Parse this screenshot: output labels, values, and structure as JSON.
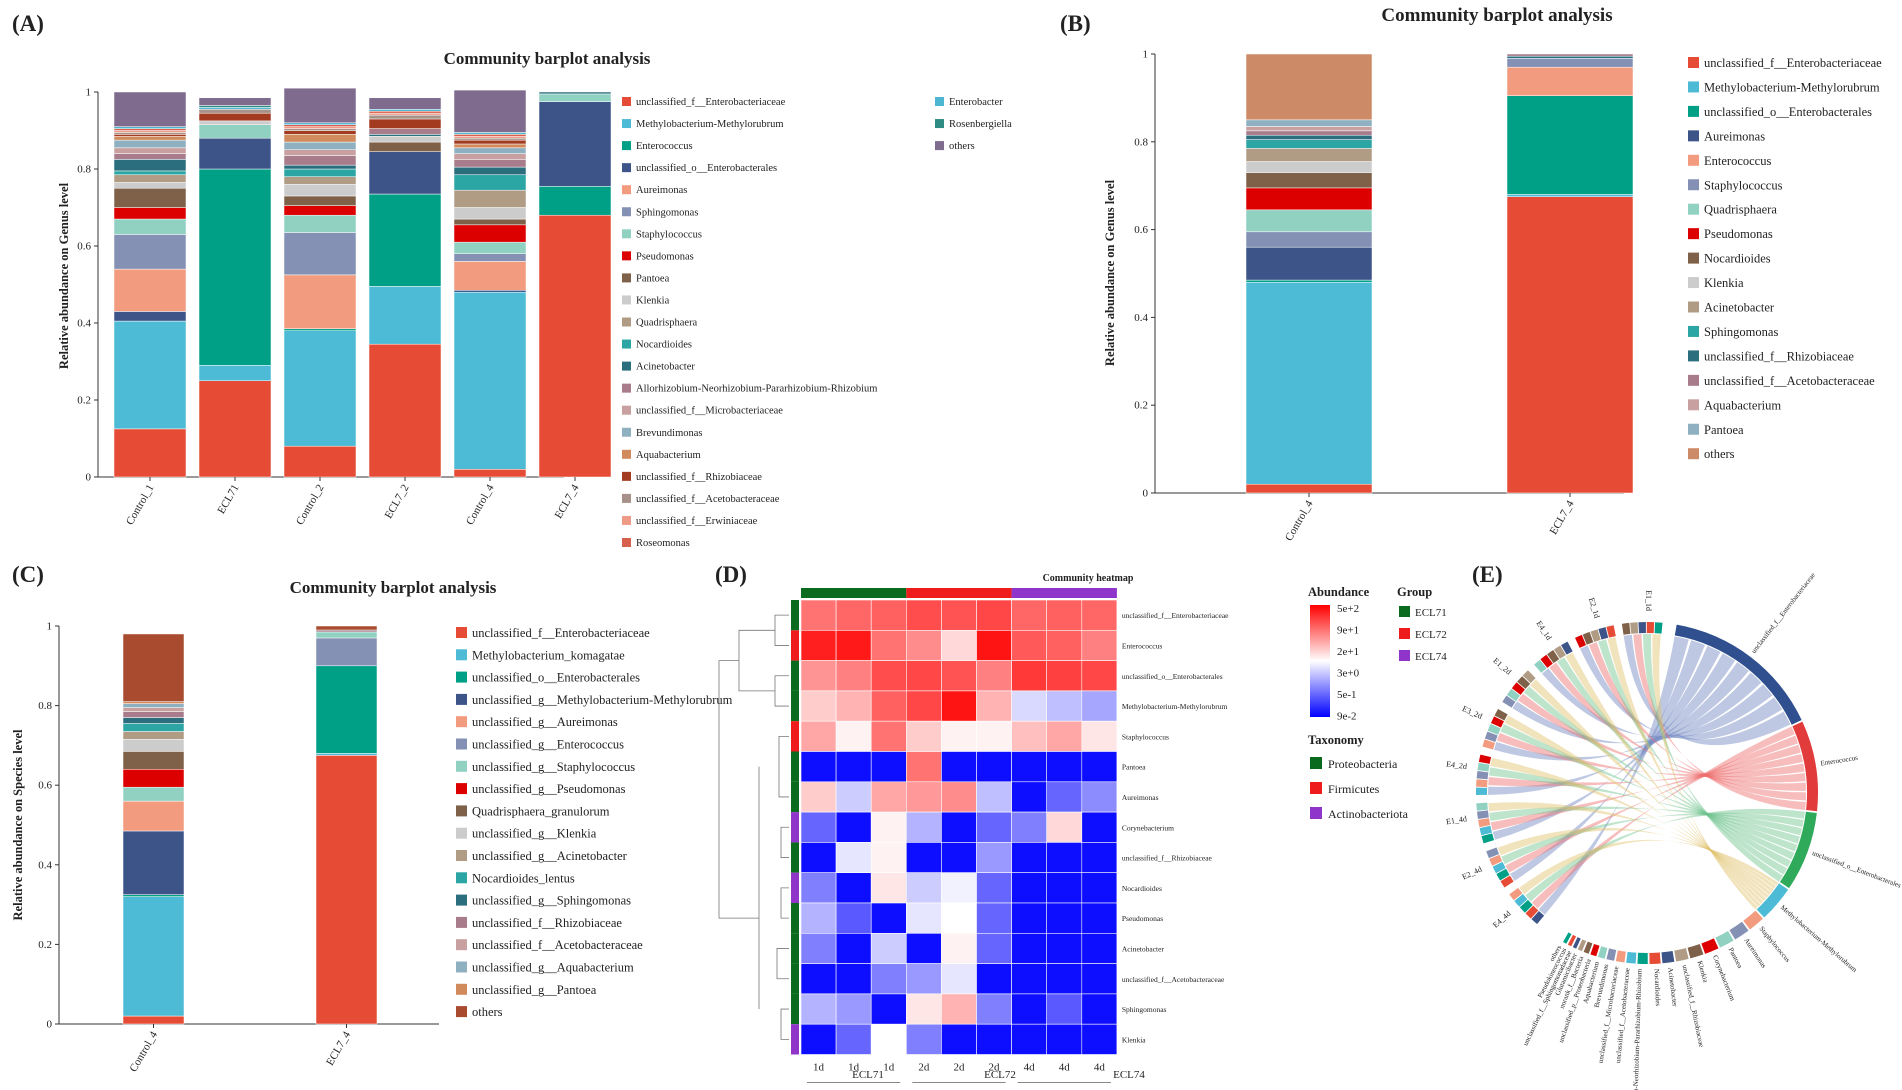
{
  "chart_data": [
    {
      "id": "A",
      "panel_label": "(A)",
      "type": "bar",
      "stacked": true,
      "title": "Community barplot analysis",
      "ylabel": "Relative abundance on Genus level",
      "ylim": [
        0,
        1
      ],
      "yticks": [
        "0",
        "0.2",
        "0.4",
        "0.6",
        "0.8",
        "1"
      ],
      "categories": [
        "Control_1",
        "ECL71",
        "Control_2",
        "ECL7_2",
        "Control_4",
        "ECL7_4"
      ],
      "series": [
        {
          "name": "unclassified_f__Enterobacteriaceae",
          "color": "#e64b35",
          "values": [
            0.125,
            0.25,
            0.08,
            0.345,
            0.02,
            0.68
          ]
        },
        {
          "name": "Methylobacterium-Methylorubrum",
          "color": "#4dbbd5",
          "values": [
            0.28,
            0.04,
            0.3,
            0.15,
            0.46,
            0.0
          ]
        },
        {
          "name": "Enterococcus",
          "color": "#00a087",
          "values": [
            0.0,
            0.51,
            0.005,
            0.24,
            0.0,
            0.075
          ]
        },
        {
          "name": "unclassified_o__Enterobacterales",
          "color": "#3c5488",
          "values": [
            0.025,
            0.08,
            0.0,
            0.11,
            0.005,
            0.22
          ]
        },
        {
          "name": "Aureimonas",
          "color": "#f39b7f",
          "values": [
            0.11,
            0.0,
            0.14,
            0.0,
            0.075,
            0.0
          ]
        },
        {
          "name": "Sphingomonas",
          "color": "#8491b4",
          "values": [
            0.09,
            0.0,
            0.11,
            0.0,
            0.02,
            0.0
          ]
        },
        {
          "name": "Staphylococcus",
          "color": "#91d1c2",
          "values": [
            0.04,
            0.035,
            0.045,
            0.0,
            0.03,
            0.02
          ]
        },
        {
          "name": "Pseudomonas",
          "color": "#dc0000",
          "values": [
            0.03,
            0.0,
            0.025,
            0.0,
            0.045,
            0.0
          ]
        },
        {
          "name": "Pantoea",
          "color": "#7e6148",
          "values": [
            0.05,
            0.0,
            0.025,
            0.025,
            0.015,
            0.0
          ]
        },
        {
          "name": "Klenkia",
          "color": "#cccccc",
          "values": [
            0.015,
            0.01,
            0.03,
            0.015,
            0.03,
            0.0
          ]
        },
        {
          "name": "Quadrisphaera",
          "color": "#b09c85",
          "values": [
            0.02,
            0.0,
            0.02,
            0.0,
            0.045,
            0.0
          ]
        },
        {
          "name": "Nocardioides",
          "color": "#2ca6a4",
          "values": [
            0.01,
            0.0,
            0.02,
            0.0,
            0.04,
            0.0
          ]
        },
        {
          "name": "Acinetobacter",
          "color": "#2b6f7f",
          "values": [
            0.03,
            0.0,
            0.01,
            0.005,
            0.02,
            0.005
          ]
        },
        {
          "name": "Allorhizobium-Neorhizobium-Pararhizobium-Rhizobium",
          "color": "#a97c8c",
          "values": [
            0.015,
            0.0,
            0.025,
            0.015,
            0.02,
            0.0
          ]
        },
        {
          "name": "unclassified_f__Microbacteriaceae",
          "color": "#c9a0a0",
          "values": [
            0.015,
            0.0,
            0.015,
            0.0,
            0.015,
            0.0
          ]
        },
        {
          "name": "Brevundimonas",
          "color": "#8fb0c0",
          "values": [
            0.02,
            0.0,
            0.02,
            0.0,
            0.015,
            0.0
          ]
        },
        {
          "name": "Aquabacterium",
          "color": "#d08a5c",
          "values": [
            0.01,
            0.0,
            0.02,
            0.0,
            0.01,
            0.0
          ]
        },
        {
          "name": "unclassified_f__Rhizobiaceae",
          "color": "#a33b20",
          "values": [
            0.005,
            0.02,
            0.01,
            0.025,
            0.01,
            0.0
          ]
        },
        {
          "name": "unclassified_f__Acetobacteraceae",
          "color": "#a69288",
          "values": [
            0.005,
            0.01,
            0.005,
            0.01,
            0.005,
            0.0
          ]
        },
        {
          "name": "unclassified_f__Erwiniaceae",
          "color": "#ee9a86",
          "values": [
            0.005,
            0.0,
            0.005,
            0.005,
            0.005,
            0.0
          ]
        },
        {
          "name": "Roseomonas",
          "color": "#d7604c",
          "values": [
            0.005,
            0.0,
            0.005,
            0.005,
            0.005,
            0.0
          ]
        },
        {
          "name": "Enterobacter",
          "color": "#4db6d0",
          "values": [
            0.005,
            0.005,
            0.005,
            0.005,
            0.005,
            0.0
          ]
        },
        {
          "name": "Rosenbergiella",
          "color": "#2e8b83",
          "values": [
            0.0,
            0.005,
            0.0,
            0.0,
            0.0,
            0.0
          ]
        },
        {
          "name": "others",
          "color": "#7f6b8e",
          "values": [
            0.09,
            0.02,
            0.09,
            0.03,
            0.11,
            0.0
          ]
        }
      ]
    },
    {
      "id": "B",
      "panel_label": "(B)",
      "type": "bar",
      "stacked": true,
      "title": "Community barplot analysis",
      "ylabel": "Relative abundance on Genus level",
      "ylim": [
        0,
        1
      ],
      "yticks": [
        "0",
        "0.2",
        "0.4",
        "0.6",
        "0.8",
        "1"
      ],
      "categories": [
        "Control_4",
        "ECL7_4"
      ],
      "series": [
        {
          "name": "unclassified_f__Enterobacteriaceae",
          "color": "#e64b35",
          "values": [
            0.02,
            0.675
          ]
        },
        {
          "name": "Methylobacterium-Methylorubrum",
          "color": "#4dbbd5",
          "values": [
            0.46,
            0.005
          ]
        },
        {
          "name": "unclassified_o__Enterobacterales",
          "color": "#00a087",
          "values": [
            0.005,
            0.225
          ]
        },
        {
          "name": "Aureimonas",
          "color": "#3c5488",
          "values": [
            0.075,
            0.0
          ]
        },
        {
          "name": "Enterococcus",
          "color": "#f39b7f",
          "values": [
            0.0,
            0.065
          ]
        },
        {
          "name": "Staphylococcus",
          "color": "#8491b4",
          "values": [
            0.035,
            0.02
          ]
        },
        {
          "name": "Quadrisphaera",
          "color": "#91d1c2",
          "values": [
            0.05,
            0.0
          ]
        },
        {
          "name": "Pseudomonas",
          "color": "#dc0000",
          "values": [
            0.05,
            0.0
          ]
        },
        {
          "name": "Nocardioides",
          "color": "#7e6148",
          "values": [
            0.035,
            0.0
          ]
        },
        {
          "name": "Klenkia",
          "color": "#cccccc",
          "values": [
            0.025,
            0.0
          ]
        },
        {
          "name": "Acinetobacter",
          "color": "#b09c85",
          "values": [
            0.03,
            0.0
          ]
        },
        {
          "name": "Sphingomonas",
          "color": "#2ca6a4",
          "values": [
            0.02,
            0.0
          ]
        },
        {
          "name": "unclassified_f__Rhizobiaceae",
          "color": "#2b6f7f",
          "values": [
            0.01,
            0.005
          ]
        },
        {
          "name": "unclassified_f__Acetobacteraceae",
          "color": "#a97c8c",
          "values": [
            0.01,
            0.005
          ]
        },
        {
          "name": "Aquabacterium",
          "color": "#c9a0a0",
          "values": [
            0.01,
            0.0
          ]
        },
        {
          "name": "Pantoea",
          "color": "#8fb0c0",
          "values": [
            0.015,
            0.0
          ]
        },
        {
          "name": "others",
          "color": "#cc8a66",
          "values": [
            0.15,
            0.0
          ]
        }
      ]
    },
    {
      "id": "C",
      "panel_label": "(C)",
      "type": "bar",
      "stacked": true,
      "title": "Community barplot analysis",
      "ylabel": "Relative abundance on Species level",
      "ylim": [
        0,
        1
      ],
      "yticks": [
        "0",
        "0.2",
        "0.4",
        "0.6",
        "0.8",
        "1"
      ],
      "categories": [
        "Control_4",
        "ECL7_4"
      ],
      "series": [
        {
          "name": "unclassified_f__Enterobacteriaceae",
          "color": "#e64b35",
          "values": [
            0.02,
            0.675
          ]
        },
        {
          "name": "Methylobacterium_komagatae",
          "color": "#4dbbd5",
          "values": [
            0.3,
            0.005
          ]
        },
        {
          "name": "unclassified_o__Enterobacterales",
          "color": "#00a087",
          "values": [
            0.005,
            0.22
          ]
        },
        {
          "name": "unclassified_g__Methylobacterium-Methylorubrum",
          "color": "#3c5488",
          "values": [
            0.16,
            0.0
          ]
        },
        {
          "name": "unclassified_g__Aureimonas",
          "color": "#f39b7f",
          "values": [
            0.075,
            0.0
          ]
        },
        {
          "name": "unclassified_g__Enterococcus",
          "color": "#8491b4",
          "values": [
            0.0,
            0.07
          ]
        },
        {
          "name": "unclassified_g__Staphylococcus",
          "color": "#91d1c2",
          "values": [
            0.035,
            0.015
          ]
        },
        {
          "name": "unclassified_g__Pseudomonas",
          "color": "#dc0000",
          "values": [
            0.045,
            0.0
          ]
        },
        {
          "name": "Quadrisphaera_granulorum",
          "color": "#7e6148",
          "values": [
            0.045,
            0.0
          ]
        },
        {
          "name": "unclassified_g__Klenkia",
          "color": "#cccccc",
          "values": [
            0.03,
            0.0
          ]
        },
        {
          "name": "unclassified_g__Acinetobacter",
          "color": "#b09c85",
          "values": [
            0.02,
            0.0
          ]
        },
        {
          "name": "Nocardioides_lentus",
          "color": "#2ca6a4",
          "values": [
            0.02,
            0.0
          ]
        },
        {
          "name": "unclassified_g__Sphingomonas",
          "color": "#2b6f7f",
          "values": [
            0.015,
            0.0
          ]
        },
        {
          "name": "unclassified_f__Rhizobiaceae",
          "color": "#a97c8c",
          "values": [
            0.015,
            0.005
          ]
        },
        {
          "name": "unclassified_f__Acetobacteraceae",
          "color": "#c9a0a0",
          "values": [
            0.01,
            0.0
          ]
        },
        {
          "name": "unclassified_g__Aquabacterium",
          "color": "#8fb0c0",
          "values": [
            0.01,
            0.0
          ]
        },
        {
          "name": "unclassified_g__Pantoea",
          "color": "#d08a5c",
          "values": [
            0.005,
            0.0
          ]
        },
        {
          "name": "others",
          "color": "#a84b2f",
          "values": [
            0.17,
            0.01
          ]
        }
      ]
    },
    {
      "id": "D",
      "panel_label": "(D)",
      "type": "heatmap",
      "title": "Community heatmap",
      "columns": [
        "1d",
        "1d",
        "1d",
        "2d",
        "2d",
        "2d",
        "4d",
        "4d",
        "4d"
      ],
      "column_groups": [
        {
          "name": "ECL71",
          "color": "#0a6b1e"
        },
        {
          "name": "ECL72",
          "color": "#ee1c1c"
        },
        {
          "name": "ECL74",
          "color": "#8f35c9"
        }
      ],
      "rows": [
        {
          "name": "unclassified_f__Enterobacteriaceae",
          "taxonomy": "Proteobacteria",
          "values": [
            0.55,
            0.6,
            0.62,
            0.7,
            0.68,
            0.72,
            0.6,
            0.62,
            0.6
          ]
        },
        {
          "name": "Enterococcus",
          "taxonomy": "Firmicutes",
          "values": [
            0.88,
            0.9,
            0.55,
            0.45,
            0.15,
            0.92,
            0.65,
            0.62,
            0.5
          ]
        },
        {
          "name": "unclassified_o__Enterobacterales",
          "taxonomy": "Proteobacteria",
          "values": [
            0.42,
            0.5,
            0.7,
            0.72,
            0.68,
            0.5,
            0.78,
            0.75,
            0.72
          ]
        },
        {
          "name": "Methylobacterium-Methylorubrum",
          "taxonomy": "Proteobacteria",
          "values": [
            0.2,
            0.3,
            0.62,
            0.72,
            0.92,
            0.3,
            -0.15,
            -0.25,
            -0.35
          ]
        },
        {
          "name": "Staphylococcus",
          "taxonomy": "Firmicutes",
          "values": [
            0.35,
            0.05,
            0.55,
            0.2,
            0.05,
            0.05,
            0.25,
            0.35,
            0.1
          ]
        },
        {
          "name": "Pantoea",
          "taxonomy": "Proteobacteria",
          "values": [
            -0.95,
            -0.95,
            -0.95,
            0.55,
            -0.95,
            -0.95,
            -0.95,
            -0.95,
            -0.95
          ]
        },
        {
          "name": "Aureimonas",
          "taxonomy": "Proteobacteria",
          "values": [
            0.2,
            -0.2,
            0.35,
            0.4,
            0.45,
            -0.25,
            -0.95,
            -0.6,
            -0.45
          ]
        },
        {
          "name": "Corynebacterium",
          "taxonomy": "Actinobacteriota",
          "values": [
            -0.6,
            -0.95,
            0.05,
            -0.3,
            -0.95,
            -0.6,
            -0.5,
            0.15,
            -0.95
          ]
        },
        {
          "name": "unclassified_f__Rhizobiaceae",
          "taxonomy": "Proteobacteria",
          "values": [
            -0.95,
            -0.1,
            0.05,
            -0.95,
            -0.95,
            -0.4,
            -0.95,
            -0.95,
            -0.95
          ]
        },
        {
          "name": "Nocardioides",
          "taxonomy": "Actinobacteriota",
          "values": [
            -0.5,
            -0.95,
            0.1,
            -0.2,
            -0.05,
            -0.6,
            -0.95,
            -0.95,
            -0.95
          ]
        },
        {
          "name": "Pseudomonas",
          "taxonomy": "Proteobacteria",
          "values": [
            -0.3,
            -0.65,
            -0.95,
            -0.1,
            0.0,
            -0.6,
            -0.95,
            -0.95,
            -0.95
          ]
        },
        {
          "name": "Acinetobacter",
          "taxonomy": "Proteobacteria",
          "values": [
            -0.5,
            -0.95,
            -0.2,
            -0.95,
            0.05,
            -0.6,
            -0.95,
            -0.95,
            -0.95
          ]
        },
        {
          "name": "unclassified_f__Acetobacteraceae",
          "taxonomy": "Proteobacteria",
          "values": [
            -0.95,
            -0.95,
            -0.5,
            -0.4,
            -0.1,
            -0.95,
            -0.95,
            -0.95,
            -0.95
          ]
        },
        {
          "name": "Sphingomonas",
          "taxonomy": "Proteobacteria",
          "values": [
            -0.3,
            -0.4,
            -0.95,
            0.1,
            0.3,
            -0.5,
            -0.95,
            -0.65,
            -0.95
          ]
        },
        {
          "name": "Klenkia",
          "taxonomy": "Actinobacteriota",
          "values": [
            -0.95,
            -0.6,
            0.0,
            -0.5,
            -0.95,
            -0.95,
            -0.95,
            -0.95,
            -0.95
          ]
        }
      ],
      "abundance_title": "Abundance",
      "abundance_ticks": [
        "5e+2",
        "9e+1",
        "2e+1",
        "3e+0",
        "5e-1",
        "9e-2"
      ],
      "group_title": "Group",
      "taxonomy_title": "Taxonomy",
      "taxonomy_legend": [
        {
          "name": "Proteobacteria",
          "color": "#0a6b1e"
        },
        {
          "name": "Firmicutes",
          "color": "#ee1c1c"
        },
        {
          "name": "Actinobacteriota",
          "color": "#8f35c9"
        }
      ]
    },
    {
      "id": "E",
      "panel_label": "(E)",
      "type": "chord",
      "title": "",
      "samples": [
        "E4_4d",
        "E2_4d",
        "E1_4d",
        "E4_2d",
        "E3_2d",
        "E1_2d",
        "E4_1d",
        "E2_1d",
        "E1_1d"
      ],
      "taxa": [
        "unclassified_f__Enterobacteriaceae",
        "Enterococcus",
        "unclassified_o__Enterobacterales",
        "Methylobacterium-Methylorubrum",
        "Staphylococcus",
        "Aureimonas",
        "Pantoea",
        "Corynebacterium",
        "Klenkia",
        "unclassified_f__Rhizobiaceae",
        "Acinetobacter",
        "Nocardioides",
        "Allorhizobium-Neorhizobium-Pararhizobium-Rhizobium",
        "unclassified_f__Acetobacteraceae",
        "unclassified_f__Microbacteriaceae",
        "Brevundimonas",
        "Aquabacterium",
        "unclassified_p__Proteobacteria",
        "norank_f__Bacteria",
        "Glutamicibacter",
        "unclassified_f__Sphingomonadaceae",
        "Pseudokineococcus",
        "others"
      ]
    }
  ]
}
